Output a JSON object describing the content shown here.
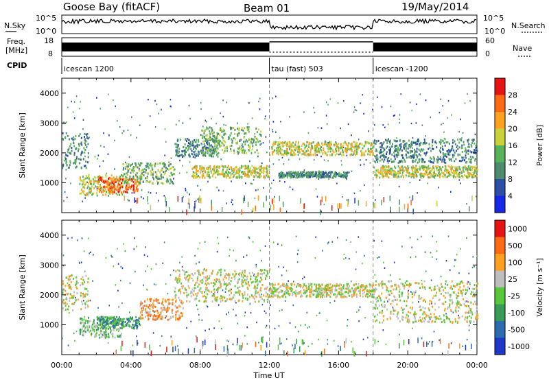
{
  "header": {
    "station": "Goose Bay (fitACF)",
    "beam": "Beam 01",
    "date": "19/May/2014"
  },
  "strips": {
    "nsky_label": "N.Sky",
    "nsky_ticks": [
      "10^5",
      "10^0"
    ],
    "nsearch_label": "N.Search",
    "nsearch_ticks": [
      "10^5",
      "10^0"
    ],
    "freq_label": "Freq.",
    "freq_unit": "[MHz]",
    "freq_ticks": [
      "18",
      "8"
    ],
    "nave_label": "Nave",
    "nave_ticks": [
      "60",
      "0"
    ],
    "cpid_label": "CPID",
    "cpid_segments": [
      {
        "label": "icescan 1200",
        "start_h": 0,
        "end_h": 12
      },
      {
        "label": "tau (fast) 503",
        "start_h": 12,
        "end_h": 18
      },
      {
        "label": "icescan -1200",
        "start_h": 18,
        "end_h": 24
      }
    ]
  },
  "chart_data": [
    {
      "type": "heatmap",
      "panel": "power",
      "ylabel": "Slant Range [km]",
      "ylim": [
        0,
        4500
      ],
      "yticks": [
        "1000",
        "2000",
        "3000",
        "4000"
      ],
      "xlim": [
        0,
        24
      ],
      "colorbar_label": "Power [dB]",
      "colorbar_ticks": [
        "4",
        "8",
        "12",
        "16",
        "20",
        "24",
        "28"
      ],
      "colorbar_colors": [
        "#1428e6",
        "#2e4fa6",
        "#4e8a6e",
        "#58b25a",
        "#c8d23c",
        "#ffa020",
        "#ff6a14",
        "#e61414"
      ],
      "bands": [
        {
          "start_h": 0.0,
          "end_h": 1.5,
          "y0": 1500,
          "y1": 2700,
          "level": 2
        },
        {
          "start_h": 1.0,
          "end_h": 3.5,
          "y0": 600,
          "y1": 1300,
          "level": 4
        },
        {
          "start_h": 2.0,
          "end_h": 4.5,
          "y0": 700,
          "y1": 1200,
          "level": 6
        },
        {
          "start_h": 3.5,
          "end_h": 6.5,
          "y0": 1000,
          "y1": 1700,
          "level": 3
        },
        {
          "start_h": 6.5,
          "end_h": 9.0,
          "y0": 1900,
          "y1": 2500,
          "level": 2
        },
        {
          "start_h": 8.0,
          "end_h": 11.5,
          "y0": 2000,
          "y1": 2900,
          "level": 3
        },
        {
          "start_h": 7.5,
          "end_h": 12.0,
          "y0": 1200,
          "y1": 1600,
          "level": 4
        },
        {
          "start_h": 12.0,
          "end_h": 18.0,
          "y0": 1950,
          "y1": 2400,
          "level": 4
        },
        {
          "start_h": 12.5,
          "end_h": 16.5,
          "y0": 1200,
          "y1": 1400,
          "level": 2
        },
        {
          "start_h": 18.0,
          "end_h": 24.0,
          "y0": 1200,
          "y1": 1600,
          "level": 4
        },
        {
          "start_h": 18.0,
          "end_h": 24.0,
          "y0": 1700,
          "y1": 2500,
          "level": 2
        }
      ]
    },
    {
      "type": "heatmap",
      "panel": "velocity",
      "xlabel": "Time UT",
      "ylabel": "Slant Range [km]",
      "ylim": [
        0,
        4500
      ],
      "yticks": [
        "1000",
        "2000",
        "3000",
        "4000"
      ],
      "xlim": [
        0,
        24
      ],
      "xticks": [
        "00:00",
        "04:00",
        "08:00",
        "12:00",
        "16:00",
        "20:00",
        "00:00"
      ],
      "colorbar_label": "Velocity [m s⁻¹]",
      "colorbar_ticks": [
        "1000",
        "500",
        "100",
        "25",
        "-25",
        "-100",
        "-500",
        "-1000"
      ],
      "colorbar_colors": [
        "#2038c8",
        "#2e6ab0",
        "#3a9a58",
        "#58c83a",
        "#bebebe",
        "#ffa020",
        "#ff6a14",
        "#e61414"
      ],
      "bands": [
        {
          "start_h": 0.0,
          "end_h": 1.5,
          "y0": 1500,
          "y1": 2700,
          "level": 4
        },
        {
          "start_h": 1.0,
          "end_h": 3.5,
          "y0": 600,
          "y1": 1300,
          "level": 3
        },
        {
          "start_h": 2.0,
          "end_h": 4.5,
          "y0": 900,
          "y1": 1300,
          "level": 2
        },
        {
          "start_h": 4.5,
          "end_h": 7.0,
          "y0": 1200,
          "y1": 1900,
          "level": 5
        },
        {
          "start_h": 6.5,
          "end_h": 12.0,
          "y0": 1800,
          "y1": 2900,
          "level": 4
        },
        {
          "start_h": 12.0,
          "end_h": 18.0,
          "y0": 1950,
          "y1": 2400,
          "level": 4
        },
        {
          "start_h": 18.0,
          "end_h": 24.0,
          "y0": 1100,
          "y1": 2500,
          "level": 4
        }
      ]
    }
  ]
}
